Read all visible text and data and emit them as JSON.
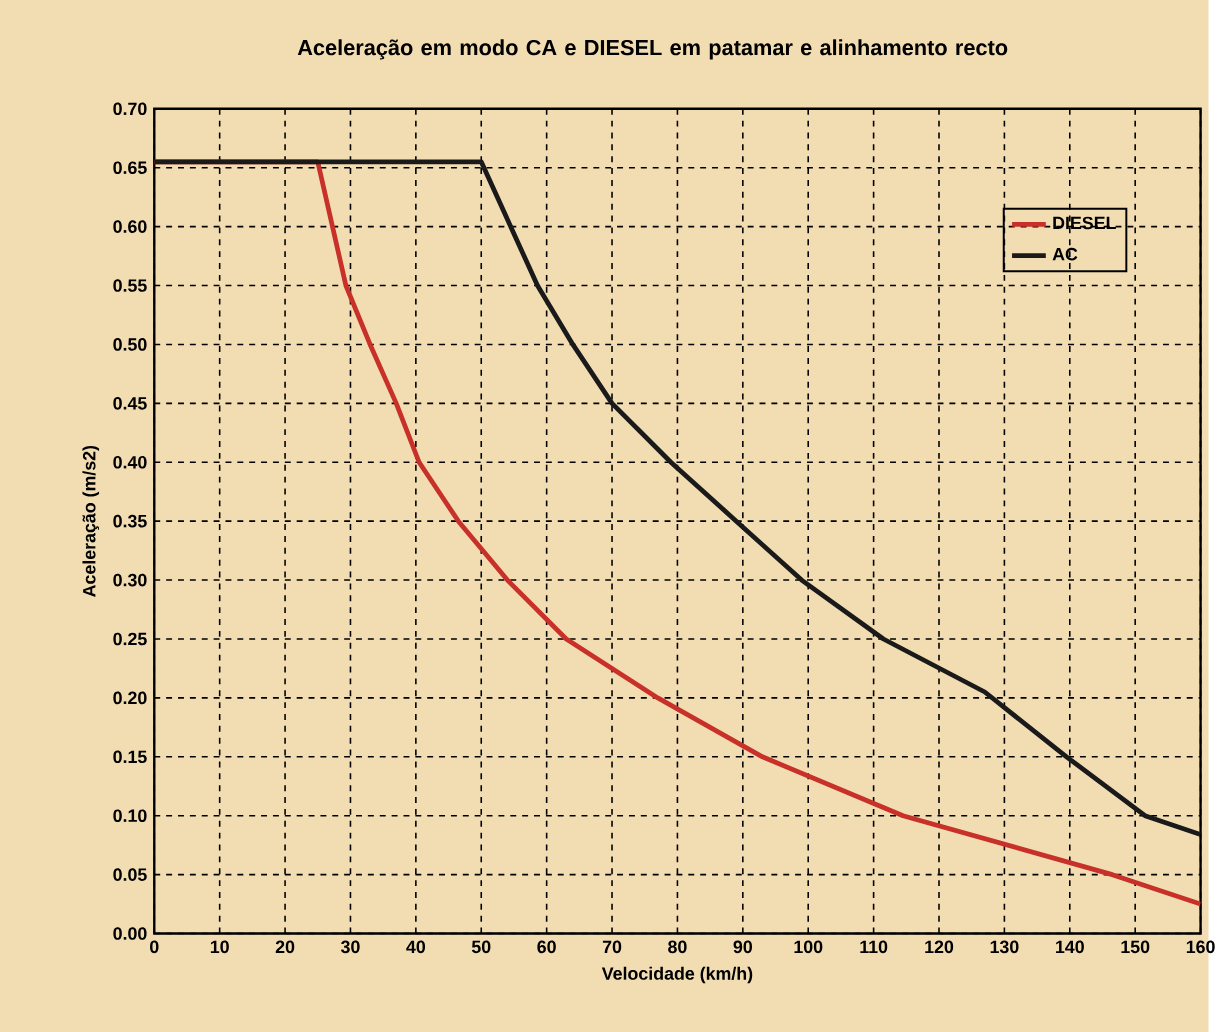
{
  "chart_data": {
    "type": "line",
    "title": "Aceleração em modo CA e DIESEL em patamar e alinhamento recto",
    "xlabel": "Velocidade (km/h)",
    "ylabel": "Aceleração (m/s2)",
    "xlim": [
      0,
      160
    ],
    "xticks": [
      0,
      10,
      20,
      30,
      40,
      50,
      60,
      70,
      80,
      90,
      100,
      110,
      120,
      130,
      140,
      150,
      160
    ],
    "ylim": [
      0,
      0.7
    ],
    "yticks": [
      {
        "value": 0,
        "label": "0.00"
      },
      {
        "value": 0.05,
        "label": "0.05"
      },
      {
        "value": 0.1,
        "label": "0.10"
      },
      {
        "value": 0.15,
        "label": "0.15"
      },
      {
        "value": 0.2,
        "label": "0.20"
      },
      {
        "value": 0.25,
        "label": "0.25"
      },
      {
        "value": 0.3,
        "label": "0.30"
      },
      {
        "value": 0.35,
        "label": "0.35"
      },
      {
        "value": 0.4,
        "label": "0.40"
      },
      {
        "value": 0.45,
        "label": "0.45"
      },
      {
        "value": 0.5,
        "label": "0.50"
      },
      {
        "value": 0.55,
        "label": "0.55"
      },
      {
        "value": 0.6,
        "label": "0.60"
      },
      {
        "value": 0.65,
        "label": "0.65"
      },
      {
        "value": 0.7,
        "label": "0.70"
      }
    ],
    "grid": true,
    "legend": "top right",
    "line_style": "solid",
    "marker": "none",
    "series": [
      {
        "name": "DIESEL",
        "color": "#c8302a",
        "x": [
          0,
          25,
          29.3,
          33,
          37,
          40.5,
          46.5,
          54,
          63,
          77,
          93,
          114.5,
          146.5,
          160
        ],
        "values": [
          0.655,
          0.655,
          0.55,
          0.5,
          0.45,
          0.4,
          0.35,
          0.3,
          0.25,
          0.2,
          0.15,
          0.1,
          0.05,
          0.025
        ]
      },
      {
        "name": "AC",
        "color": "#1a1a1a",
        "x": [
          0,
          50,
          58.6,
          64,
          70,
          79,
          89,
          99,
          111.5,
          127,
          139.5,
          151.5,
          160
        ],
        "values": [
          0.655,
          0.655,
          0.55,
          0.5,
          0.45,
          0.4,
          0.35,
          0.3,
          0.25,
          0.205,
          0.15,
          0.1,
          0.084
        ]
      }
    ]
  }
}
